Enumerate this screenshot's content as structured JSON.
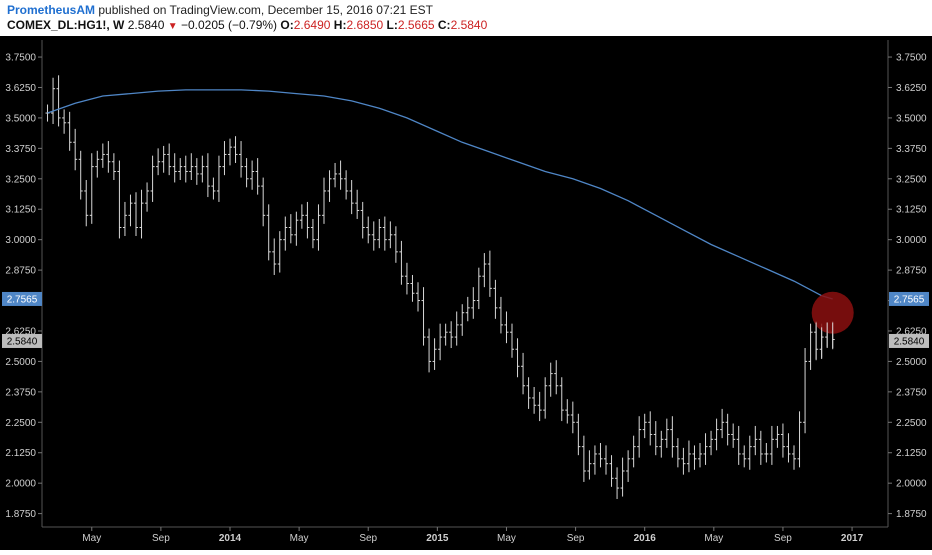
{
  "header": {
    "author": "PrometheusAM",
    "published_text": "published on TradingView.com, December 15, 2016 07:21 EST",
    "symbol": "COMEX_DL:HG1!, W",
    "last": "2.5840",
    "change": "−0.0205 (−0.79%)",
    "o_label": "O:",
    "o_value": "2.6490",
    "h_label": "H:",
    "h_value": "2.6850",
    "l_label": "L:",
    "l_value": "2.5665",
    "c_label": "C:",
    "c_value": "2.5840"
  },
  "colors": {
    "background": "#000000",
    "bars": "#d8d8d8",
    "ma_line": "#4f86c6",
    "ma_badge": "#4f86c6",
    "price_badge": "#bdbdbd",
    "highlight_circle": "#8b0f0f",
    "axis_text": "#cfcfcf",
    "change_down": "#cc2222"
  },
  "chart_data": {
    "type": "ohlc-bar",
    "interval": "weekly",
    "ylim": [
      1.82,
      3.82
    ],
    "y_ticks": [
      "3.7500",
      "3.6250",
      "3.5000",
      "3.3750",
      "3.2500",
      "3.1250",
      "3.0000",
      "2.8750",
      "2.7500",
      "2.6250",
      "2.5000",
      "2.3750",
      "2.2500",
      "2.1250",
      "2.0000",
      "1.8750"
    ],
    "x_ticks": [
      {
        "label": "May",
        "t": 0.08
      },
      {
        "label": "Sep",
        "t": 0.205
      },
      {
        "label": "2014",
        "t": 0.33
      },
      {
        "label": "May",
        "t": 0.455
      },
      {
        "label": "Sep",
        "t": 0.58
      },
      {
        "label": "2015",
        "t": 0.705
      },
      {
        "label": "May",
        "t": 0.83
      },
      {
        "label": "Sep",
        "t": 0.955
      },
      {
        "label": "2016",
        "t": 1.08
      },
      {
        "label": "May",
        "t": 1.205
      },
      {
        "label": "Sep",
        "t": 1.33
      },
      {
        "label": "2017",
        "t": 1.455
      }
    ],
    "price_series": [
      [
        0,
        3.52
      ],
      [
        0.01,
        3.62
      ],
      [
        0.02,
        3.5
      ],
      [
        0.03,
        3.48
      ],
      [
        0.04,
        3.4
      ],
      [
        0.05,
        3.33
      ],
      [
        0.06,
        3.2
      ],
      [
        0.07,
        3.1
      ],
      [
        0.08,
        3.3
      ],
      [
        0.09,
        3.33
      ],
      [
        0.1,
        3.35
      ],
      [
        0.11,
        3.32
      ],
      [
        0.12,
        3.28
      ],
      [
        0.13,
        3.05
      ],
      [
        0.14,
        3.1
      ],
      [
        0.15,
        3.15
      ],
      [
        0.16,
        3.05
      ],
      [
        0.17,
        3.15
      ],
      [
        0.18,
        3.2
      ],
      [
        0.19,
        3.3
      ],
      [
        0.2,
        3.32
      ],
      [
        0.21,
        3.35
      ],
      [
        0.22,
        3.3
      ],
      [
        0.23,
        3.28
      ],
      [
        0.24,
        3.3
      ],
      [
        0.25,
        3.28
      ],
      [
        0.26,
        3.3
      ],
      [
        0.27,
        3.27
      ],
      [
        0.28,
        3.3
      ],
      [
        0.29,
        3.22
      ],
      [
        0.3,
        3.2
      ],
      [
        0.31,
        3.3
      ],
      [
        0.32,
        3.35
      ],
      [
        0.33,
        3.38
      ],
      [
        0.34,
        3.35
      ],
      [
        0.35,
        3.3
      ],
      [
        0.36,
        3.25
      ],
      [
        0.37,
        3.28
      ],
      [
        0.38,
        3.22
      ],
      [
        0.39,
        3.1
      ],
      [
        0.4,
        2.95
      ],
      [
        0.41,
        2.9
      ],
      [
        0.42,
        3.0
      ],
      [
        0.43,
        3.05
      ],
      [
        0.44,
        3.02
      ],
      [
        0.45,
        3.08
      ],
      [
        0.46,
        3.1
      ],
      [
        0.47,
        3.05
      ],
      [
        0.48,
        3.0
      ],
      [
        0.49,
        3.1
      ],
      [
        0.5,
        3.2
      ],
      [
        0.51,
        3.25
      ],
      [
        0.52,
        3.27
      ],
      [
        0.53,
        3.25
      ],
      [
        0.54,
        3.2
      ],
      [
        0.55,
        3.15
      ],
      [
        0.56,
        3.12
      ],
      [
        0.57,
        3.05
      ],
      [
        0.58,
        3.02
      ],
      [
        0.59,
        3.0
      ],
      [
        0.6,
        3.05
      ],
      [
        0.61,
        3.0
      ],
      [
        0.62,
        3.02
      ],
      [
        0.63,
        2.95
      ],
      [
        0.64,
        2.85
      ],
      [
        0.65,
        2.82
      ],
      [
        0.66,
        2.78
      ],
      [
        0.67,
        2.75
      ],
      [
        0.68,
        2.6
      ],
      [
        0.69,
        2.5
      ],
      [
        0.7,
        2.55
      ],
      [
        0.71,
        2.6
      ],
      [
        0.72,
        2.62
      ],
      [
        0.73,
        2.6
      ],
      [
        0.74,
        2.65
      ],
      [
        0.75,
        2.7
      ],
      [
        0.76,
        2.72
      ],
      [
        0.77,
        2.75
      ],
      [
        0.78,
        2.85
      ],
      [
        0.79,
        2.9
      ],
      [
        0.8,
        2.8
      ],
      [
        0.81,
        2.72
      ],
      [
        0.82,
        2.65
      ],
      [
        0.83,
        2.62
      ],
      [
        0.84,
        2.55
      ],
      [
        0.85,
        2.48
      ],
      [
        0.86,
        2.4
      ],
      [
        0.87,
        2.35
      ],
      [
        0.88,
        2.32
      ],
      [
        0.89,
        2.3
      ],
      [
        0.9,
        2.4
      ],
      [
        0.91,
        2.45
      ],
      [
        0.92,
        2.4
      ],
      [
        0.93,
        2.3
      ],
      [
        0.94,
        2.28
      ],
      [
        0.95,
        2.25
      ],
      [
        0.96,
        2.15
      ],
      [
        0.97,
        2.05
      ],
      [
        0.98,
        2.08
      ],
      [
        0.99,
        2.12
      ],
      [
        1.0,
        2.1
      ],
      [
        1.01,
        2.08
      ],
      [
        1.02,
        2.02
      ],
      [
        1.03,
        1.98
      ],
      [
        1.04,
        2.05
      ],
      [
        1.05,
        2.1
      ],
      [
        1.06,
        2.15
      ],
      [
        1.07,
        2.22
      ],
      [
        1.08,
        2.25
      ],
      [
        1.09,
        2.2
      ],
      [
        1.1,
        2.15
      ],
      [
        1.11,
        2.18
      ],
      [
        1.12,
        2.22
      ],
      [
        1.13,
        2.15
      ],
      [
        1.14,
        2.1
      ],
      [
        1.15,
        2.08
      ],
      [
        1.16,
        2.12
      ],
      [
        1.17,
        2.1
      ],
      [
        1.18,
        2.12
      ],
      [
        1.19,
        2.15
      ],
      [
        1.2,
        2.18
      ],
      [
        1.21,
        2.22
      ],
      [
        1.22,
        2.25
      ],
      [
        1.23,
        2.2
      ],
      [
        1.24,
        2.18
      ],
      [
        1.25,
        2.12
      ],
      [
        1.26,
        2.1
      ],
      [
        1.27,
        2.15
      ],
      [
        1.28,
        2.18
      ],
      [
        1.29,
        2.12
      ],
      [
        1.3,
        2.12
      ],
      [
        1.31,
        2.18
      ],
      [
        1.32,
        2.2
      ],
      [
        1.33,
        2.15
      ],
      [
        1.34,
        2.12
      ],
      [
        1.35,
        2.1
      ],
      [
        1.36,
        2.25
      ],
      [
        1.37,
        2.5
      ],
      [
        1.38,
        2.62
      ],
      [
        1.39,
        2.55
      ],
      [
        1.4,
        2.6
      ],
      [
        1.41,
        2.62
      ],
      [
        1.42,
        2.59
      ]
    ],
    "ma_series": [
      [
        0,
        3.52
      ],
      [
        0.05,
        3.56
      ],
      [
        0.1,
        3.59
      ],
      [
        0.15,
        3.6
      ],
      [
        0.2,
        3.61
      ],
      [
        0.25,
        3.615
      ],
      [
        0.3,
        3.615
      ],
      [
        0.35,
        3.615
      ],
      [
        0.4,
        3.61
      ],
      [
        0.45,
        3.6
      ],
      [
        0.5,
        3.59
      ],
      [
        0.55,
        3.57
      ],
      [
        0.6,
        3.54
      ],
      [
        0.65,
        3.5
      ],
      [
        0.7,
        3.45
      ],
      [
        0.75,
        3.4
      ],
      [
        0.8,
        3.36
      ],
      [
        0.85,
        3.32
      ],
      [
        0.9,
        3.28
      ],
      [
        0.95,
        3.25
      ],
      [
        1.0,
        3.21
      ],
      [
        1.05,
        3.16
      ],
      [
        1.1,
        3.1
      ],
      [
        1.15,
        3.04
      ],
      [
        1.2,
        2.98
      ],
      [
        1.25,
        2.93
      ],
      [
        1.3,
        2.88
      ],
      [
        1.35,
        2.83
      ],
      [
        1.4,
        2.77
      ],
      [
        1.42,
        2.7565
      ]
    ],
    "ma_last_label": "2.7565",
    "price_last_label": "2.5840",
    "highlight": {
      "t": 1.42,
      "y": 2.7
    }
  }
}
